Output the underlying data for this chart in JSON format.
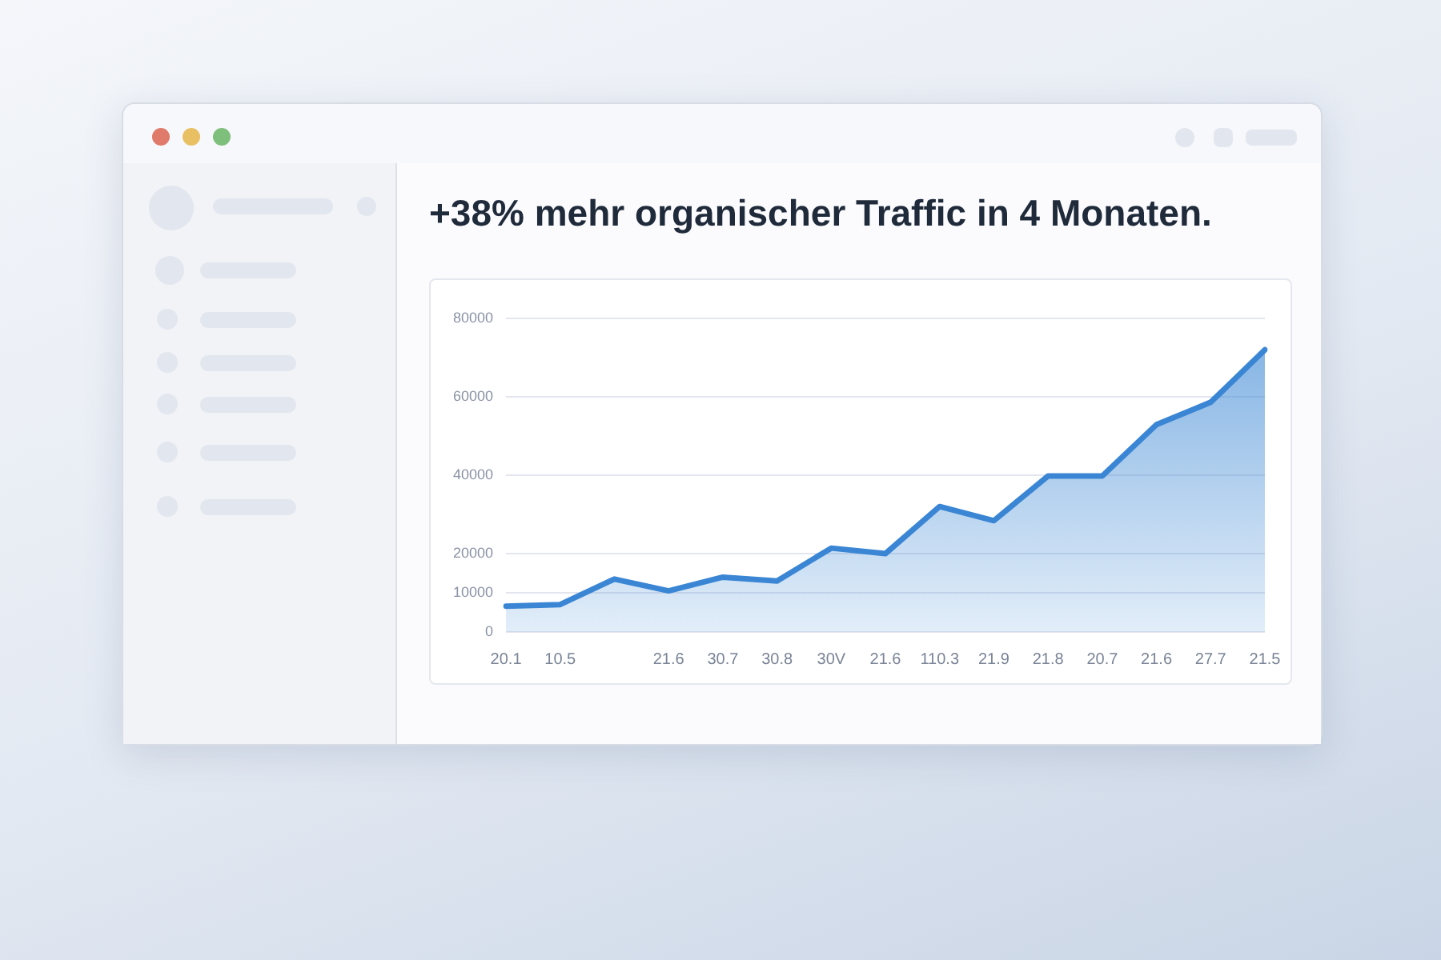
{
  "chart_data": {
    "type": "area",
    "title": "+38% mehr organischer Traffic in 4 Monaten.",
    "categories": [
      "20.1",
      "10.5",
      null,
      "21.6",
      "30.7",
      "30.8",
      "30V",
      "21.6",
      "110.3",
      "21.9",
      "21.8",
      "20.7",
      "21.6",
      "27.7",
      "21.5"
    ],
    "series": [
      {
        "color": "#3a86d4",
        "values": [
          6600,
          7000,
          13500,
          10500,
          14000,
          13000,
          21400,
          20000,
          32000,
          28400,
          39800,
          39800,
          52900,
          58600,
          72000
        ]
      }
    ],
    "ylim": [
      0,
      80000
    ],
    "yticks": [
      0,
      {
        "value": 10000,
        "label": "10000"
      },
      20000,
      40000,
      60000,
      80000
    ],
    "grid": "y",
    "legend": false,
    "marker": "none",
    "line_style": "solid"
  }
}
